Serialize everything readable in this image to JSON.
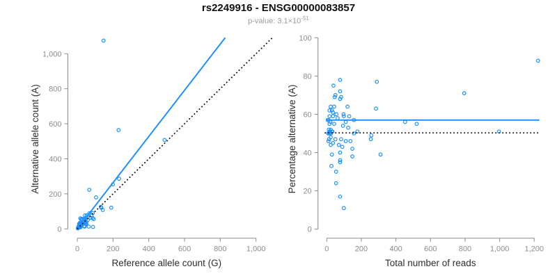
{
  "header": {
    "title": "rs2249916 - ENSG00000083857",
    "pvalue_prefix": "p-value: ",
    "pvalue_base": "3.1×10",
    "pvalue_exponent": "-51"
  },
  "colors": {
    "accent_blue": "#1E90FF",
    "identity_line": "#000000",
    "axis_gray": "#8a8a8a",
    "tick_label_gray": "#8c8c8c",
    "label_dark": "#2e2e2e",
    "subtitle_gray": "#9a9a9a"
  },
  "chart_data": [
    {
      "id": "allele-count-scatter",
      "type": "scatter",
      "xlabel": "Reference allele count (G)",
      "ylabel": "Alternative allele count (A)",
      "xlim": [
        0,
        1000
      ],
      "ylim": [
        0,
        1000
      ],
      "grid": false,
      "xticks": {
        "values": [
          0,
          200,
          400,
          600,
          800,
          1000
        ],
        "labels": [
          "0",
          "200",
          "400",
          "600",
          "800",
          "1,000"
        ]
      },
      "yticks": {
        "values": [
          0,
          200,
          400,
          600,
          800,
          1000
        ],
        "labels": [
          "0",
          "200",
          "400",
          "600",
          "800",
          "1,000"
        ]
      },
      "lines": [
        {
          "name": "fitted-ratio-line",
          "style": "solid",
          "x1": 0,
          "y1": 0,
          "x2": 828,
          "y2": 1092
        },
        {
          "name": "identity-line",
          "style": "dotted",
          "x1": 0,
          "y1": 0,
          "x2": 1093,
          "y2": 1093
        }
      ],
      "points": [
        [
          147,
          1075
        ],
        [
          231,
          564
        ],
        [
          488,
          508
        ],
        [
          234,
          286
        ],
        [
          199,
          254
        ],
        [
          132,
          126
        ],
        [
          190,
          121
        ],
        [
          135,
          120
        ],
        [
          105,
          180
        ],
        [
          67,
          223
        ],
        [
          143,
          108
        ],
        [
          17,
          60
        ],
        [
          10,
          29
        ],
        [
          22,
          55
        ],
        [
          15,
          35
        ],
        [
          26,
          57
        ],
        [
          14,
          32
        ],
        [
          25,
          52
        ],
        [
          8,
          15
        ],
        [
          15,
          28
        ],
        [
          43,
          77
        ],
        [
          11,
          19
        ],
        [
          6,
          10
        ],
        [
          14,
          22
        ],
        [
          22,
          34
        ],
        [
          39,
          58
        ],
        [
          41,
          58
        ],
        [
          7,
          9
        ],
        [
          15,
          21
        ],
        [
          26,
          37
        ],
        [
          53,
          77
        ],
        [
          68,
          89
        ],
        [
          3,
          3
        ],
        [
          48,
          62
        ],
        [
          7,
          10
        ],
        [
          19,
          24
        ],
        [
          43,
          51
        ],
        [
          58,
          66
        ],
        [
          11,
          12
        ],
        [
          8,
          8
        ],
        [
          15,
          15
        ],
        [
          79,
          78
        ],
        [
          87,
          90
        ],
        [
          12,
          11
        ],
        [
          27,
          23
        ],
        [
          44,
          39
        ],
        [
          5,
          5
        ],
        [
          59,
          51
        ],
        [
          74,
          63
        ],
        [
          20,
          16
        ],
        [
          39,
          31
        ],
        [
          13,
          10
        ],
        [
          51,
          39
        ],
        [
          86,
          62
        ],
        [
          18,
          12
        ],
        [
          46,
          31
        ],
        [
          92,
          56
        ],
        [
          49,
          28
        ],
        [
          50,
          27
        ],
        [
          18,
          9
        ],
        [
          38,
          16
        ],
        [
          41,
          13
        ],
        [
          64,
          13
        ],
        [
          88,
          11
        ],
        [
          4,
          6
        ],
        [
          6,
          6
        ],
        [
          7,
          7
        ],
        [
          9,
          9
        ],
        [
          10,
          10
        ],
        [
          12,
          13
        ],
        [
          4,
          4
        ],
        [
          16,
          17
        ],
        [
          9,
          12
        ]
      ]
    },
    {
      "id": "percentage-reads-scatter",
      "type": "scatter",
      "xlabel": "Total number of reads",
      "ylabel": "Percentage alternative (A)",
      "xlim": [
        0,
        1200
      ],
      "ylim": [
        0,
        100
      ],
      "grid": false,
      "xticks": {
        "values": [
          0,
          200,
          400,
          600,
          800,
          1000,
          1200
        ],
        "labels": [
          "0",
          "200",
          "400",
          "600",
          "800",
          "1,000",
          "1,200"
        ]
      },
      "yticks": {
        "values": [
          0,
          20,
          40,
          60,
          80,
          100
        ],
        "labels": [
          "0",
          "20",
          "40",
          "60",
          "80",
          "100"
        ]
      },
      "lines": [
        {
          "name": "mean-percentage-line",
          "style": "solid",
          "x1": -4,
          "y1": 57,
          "x2": 1230,
          "y2": 57
        },
        {
          "name": "expected-50pct-line",
          "style": "dotted",
          "x1": -12,
          "y1": 50.3,
          "x2": 1228,
          "y2": 50.3
        }
      ],
      "points": [
        [
          1222,
          88
        ],
        [
          795,
          71
        ],
        [
          996,
          51
        ],
        [
          77,
          78
        ],
        [
          290,
          77
        ],
        [
          39,
          75
        ],
        [
          77,
          72
        ],
        [
          50,
          70
        ],
        [
          83,
          69
        ],
        [
          46,
          69
        ],
        [
          77,
          68
        ],
        [
          23,
          64
        ],
        [
          43,
          64
        ],
        [
          285,
          63
        ],
        [
          120,
          64
        ],
        [
          30,
          62
        ],
        [
          16,
          62
        ],
        [
          36,
          61
        ],
        [
          56,
          60
        ],
        [
          97,
          60
        ],
        [
          99,
          59
        ],
        [
          16,
          59
        ],
        [
          36,
          59
        ],
        [
          63,
          58
        ],
        [
          130,
          59
        ],
        [
          157,
          57
        ],
        [
          6,
          57
        ],
        [
          110,
          56
        ],
        [
          453,
          56
        ],
        [
          520,
          55
        ],
        [
          16,
          55
        ],
        [
          43,
          55
        ],
        [
          94,
          54
        ],
        [
          124,
          53
        ],
        [
          23,
          52
        ],
        [
          16,
          51
        ],
        [
          30,
          51
        ],
        [
          157,
          50
        ],
        [
          177,
          51
        ],
        [
          258,
          49
        ],
        [
          255,
          47
        ],
        [
          23,
          48
        ],
        [
          50,
          47
        ],
        [
          83,
          47
        ],
        [
          10,
          46
        ],
        [
          110,
          46
        ],
        [
          137,
          46
        ],
        [
          36,
          45
        ],
        [
          70,
          44
        ],
        [
          23,
          44
        ],
        [
          90,
          43
        ],
        [
          148,
          42
        ],
        [
          30,
          39
        ],
        [
          77,
          40
        ],
        [
          311,
          39
        ],
        [
          148,
          38
        ],
        [
          77,
          36
        ],
        [
          77,
          35
        ],
        [
          27,
          33
        ],
        [
          54,
          30
        ],
        [
          54,
          24
        ],
        [
          77,
          17
        ],
        [
          99,
          11
        ],
        [
          10,
          57
        ],
        [
          12,
          52
        ],
        [
          14,
          50
        ],
        [
          18,
          50
        ],
        [
          20,
          51
        ],
        [
          25,
          50
        ],
        [
          8,
          50
        ],
        [
          33,
          51
        ],
        [
          21,
          56
        ],
        [
          13,
          47
        ]
      ]
    }
  ]
}
